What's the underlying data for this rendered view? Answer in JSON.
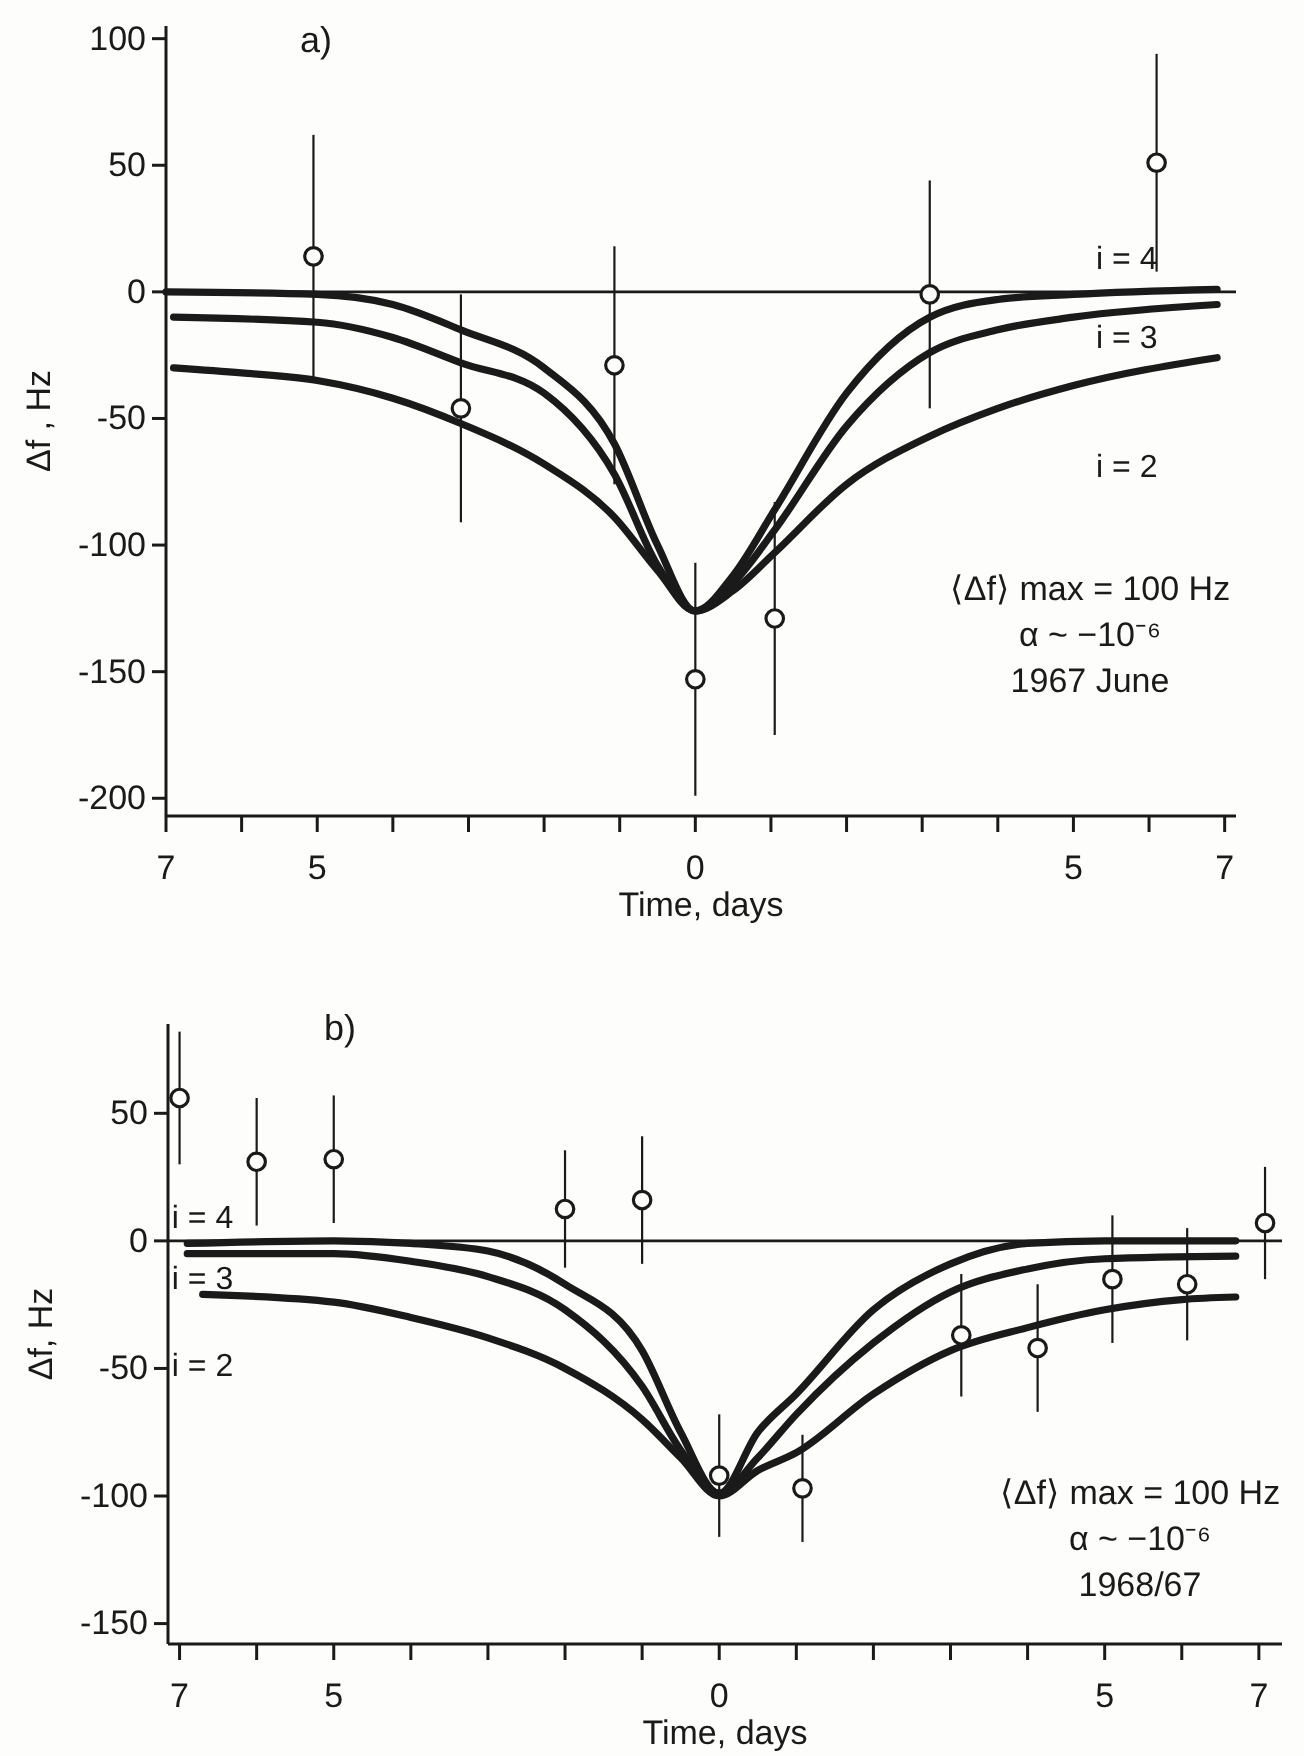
{
  "chart_data": [
    {
      "type": "line",
      "title": "a)",
      "xlabel": "Time, days",
      "ylabel": "Δf , Hz",
      "xlim": [
        -7,
        7.15
      ],
      "ylim": [
        -207,
        105
      ],
      "xticks": [
        {
          "value": -7,
          "label": "7"
        },
        {
          "value": -6,
          "label": null
        },
        {
          "value": -5,
          "label": "5"
        },
        {
          "value": -4,
          "label": null
        },
        {
          "value": -3,
          "label": null
        },
        {
          "value": -2,
          "label": null
        },
        {
          "value": -1,
          "label": null
        },
        0,
        {
          "value": 1,
          "label": null
        },
        {
          "value": 2,
          "label": null
        },
        {
          "value": 3,
          "label": null
        },
        {
          "value": 4,
          "label": null
        },
        {
          "value": 5,
          "label": "5"
        },
        {
          "value": 6,
          "label": null
        },
        {
          "value": 7,
          "label": "7"
        }
      ],
      "yticks": [
        100,
        50,
        0,
        -50,
        -100,
        -150,
        -200
      ],
      "grid": false,
      "line_style": "solid",
      "ref_lines": [
        {
          "axis": "y",
          "value": 0,
          "color": "#1a1a1a"
        }
      ],
      "annotations": [
        "⟨Δf⟩ max = 100 Hz",
        "α ~ −10⁻⁶",
        "1967 June"
      ],
      "series": [
        {
          "name": "i = 4",
          "color": "#1a1a1a",
          "marker": "none",
          "x": [
            -7,
            -5,
            -4,
            -3.1,
            -2,
            -1.07,
            -0.5,
            0,
            0.5,
            1.05,
            2,
            3.1,
            4,
            5,
            6.9
          ],
          "values": [
            0,
            -1,
            -5,
            -15,
            -30,
            -60,
            -100,
            -126,
            -112,
            -86,
            -40,
            -10,
            -3,
            -1,
            1
          ]
        },
        {
          "name": "i = 3",
          "color": "#1a1a1a",
          "marker": "none",
          "x": [
            -6.9,
            -5,
            -4,
            -3.1,
            -2,
            -1.07,
            -0.5,
            0,
            0.5,
            1.05,
            2,
            3.1,
            4,
            5,
            6.9
          ],
          "values": [
            -10,
            -12,
            -18,
            -28,
            -40,
            -72,
            -108,
            -126,
            -115,
            -94,
            -53,
            -24,
            -15,
            -10,
            -5
          ]
        },
        {
          "name": "i = 2",
          "color": "#1a1a1a",
          "marker": "none",
          "x": [
            -6.9,
            -6,
            -5,
            -4,
            -3.1,
            -2,
            -1.07,
            -0.5,
            0,
            0.5,
            1.05,
            2,
            3.1,
            4,
            5,
            6.9
          ],
          "values": [
            -30,
            -32,
            -35,
            -42,
            -52,
            -68,
            -89,
            -110,
            -126,
            -118,
            -103,
            -76,
            -57,
            -46,
            -37,
            -26
          ]
        },
        {
          "type": "scatter",
          "color": "#1a1a1a",
          "marker": "circle",
          "x": [
            -5.05,
            -3.1,
            -1.07,
            0,
            1.05,
            3.1,
            6.1
          ],
          "values": [
            14,
            -46,
            -29,
            -153,
            -129,
            -1,
            51
          ],
          "errors": [
            48,
            45,
            47,
            46,
            46,
            45,
            43
          ]
        }
      ]
    },
    {
      "type": "line",
      "title": "b)",
      "xlabel": "Time, days",
      "ylabel": "Δf,  Hz",
      "xlim": [
        -7.15,
        7.3
      ],
      "ylim": [
        -158,
        85
      ],
      "xticks": [
        {
          "value": -7,
          "label": "7"
        },
        {
          "value": -6,
          "label": null
        },
        {
          "value": -5,
          "label": "5"
        },
        {
          "value": -4,
          "label": null
        },
        {
          "value": -3,
          "label": null
        },
        {
          "value": -2,
          "label": null
        },
        {
          "value": -1,
          "label": null
        },
        0,
        {
          "value": 1,
          "label": null
        },
        {
          "value": 2,
          "label": null
        },
        {
          "value": 3,
          "label": null
        },
        {
          "value": 4,
          "label": null
        },
        {
          "value": 5,
          "label": "5"
        },
        {
          "value": 6,
          "label": null
        },
        {
          "value": 7,
          "label": "7"
        }
      ],
      "yticks": [
        50,
        0,
        -50,
        -100,
        -150
      ],
      "grid": false,
      "line_style": "solid",
      "ref_lines": [
        {
          "axis": "y",
          "value": 0,
          "color": "#1a1a1a"
        }
      ],
      "annotations": [
        "⟨Δf⟩ max = 100 Hz",
        "α ~ −10⁻⁶",
        "1968/67"
      ],
      "series": [
        {
          "name": "i = 4",
          "color": "#1a1a1a",
          "marker": "none",
          "x": [
            -6.9,
            -5,
            -4,
            -3,
            -2,
            -1,
            -0.5,
            0,
            0.5,
            1,
            2,
            3,
            4,
            5,
            6.7
          ],
          "values": [
            -1,
            0,
            -1,
            -4,
            -17,
            -43,
            -75,
            -99,
            -75,
            -60,
            -27,
            -9,
            -1,
            0,
            0
          ]
        },
        {
          "name": "i = 3",
          "color": "#1a1a1a",
          "marker": "none",
          "x": [
            -6.9,
            -5,
            -4,
            -3,
            -2,
            -1,
            -0.5,
            0,
            0.5,
            1,
            2,
            3,
            4,
            5,
            6.7
          ],
          "values": [
            -5,
            -5,
            -8,
            -14,
            -27,
            -57,
            -82,
            -99,
            -85,
            -68,
            -40,
            -20,
            -11,
            -7,
            -6
          ]
        },
        {
          "name": "i = 2",
          "color": "#1a1a1a",
          "marker": "none",
          "x": [
            -6.7,
            -5,
            -4,
            -3,
            -2,
            -1,
            -0.5,
            0,
            0.5,
            1,
            2,
            3,
            4,
            5,
            6,
            6.7
          ],
          "values": [
            -21,
            -24,
            -30,
            -38,
            -50,
            -70,
            -85,
            -100,
            -90,
            -83,
            -60,
            -43,
            -34,
            -27,
            -23,
            -22
          ]
        },
        {
          "type": "scatter",
          "color": "#1a1a1a",
          "marker": "circle",
          "x": [
            -7,
            -6,
            -5,
            -2,
            -1,
            0,
            1.08,
            3.14,
            4.13,
            5.1,
            6.07,
            7.08
          ],
          "values": [
            56,
            31,
            32,
            12.5,
            16,
            -92,
            -97,
            -37,
            -42,
            -15,
            -17,
            7
          ],
          "errors": [
            26,
            25,
            25,
            23,
            25,
            24,
            21,
            24,
            25,
            25,
            22,
            22
          ]
        }
      ]
    }
  ]
}
